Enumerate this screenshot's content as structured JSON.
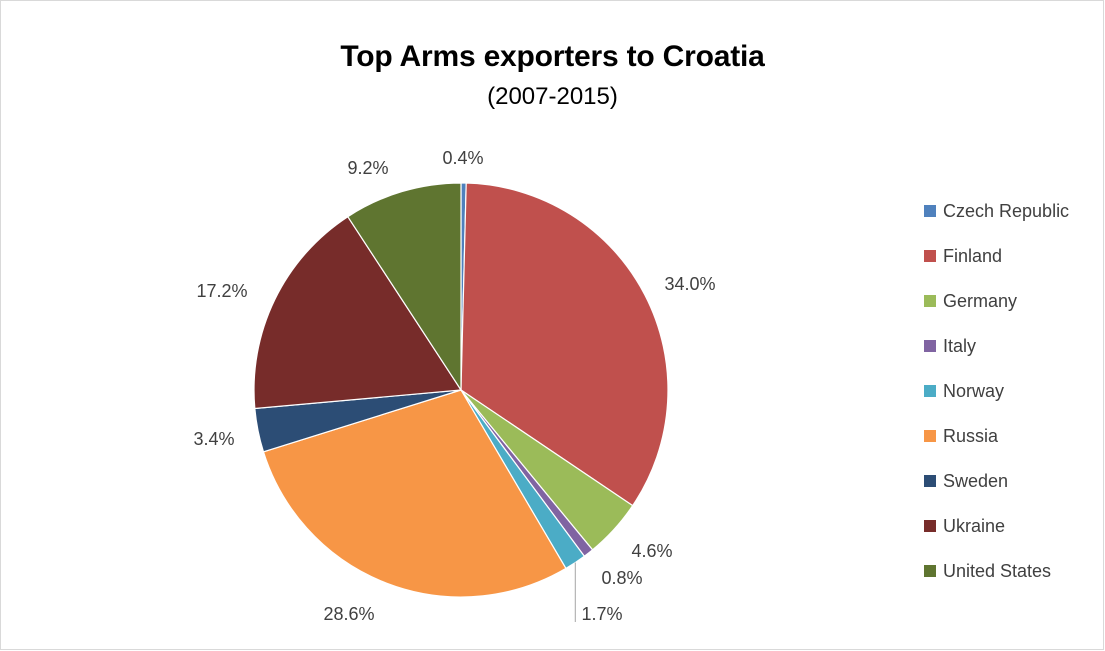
{
  "chart_data": {
    "type": "pie",
    "title": "Top Arms exporters to Croatia",
    "subtitle": "(2007-2015)",
    "categories": [
      "Czech Republic",
      "Finland",
      "Germany",
      "Italy",
      "Norway",
      "Russia",
      "Sweden",
      "Ukraine",
      "United States"
    ],
    "values": [
      0.4,
      34.0,
      4.6,
      0.8,
      1.7,
      28.6,
      3.4,
      17.2,
      9.2
    ],
    "data_labels": [
      "0.4%",
      "34.0%",
      "4.6%",
      "0.8%",
      "1.7%",
      "28.6%",
      "3.4%",
      "17.2%",
      "9.2%"
    ],
    "colors": [
      "#4f81bd",
      "#c0504d",
      "#9bbb59",
      "#8064a2",
      "#4bacc6",
      "#f79646",
      "#2c4d75",
      "#772c2a",
      "#5f7530"
    ],
    "legend_position": "right"
  }
}
